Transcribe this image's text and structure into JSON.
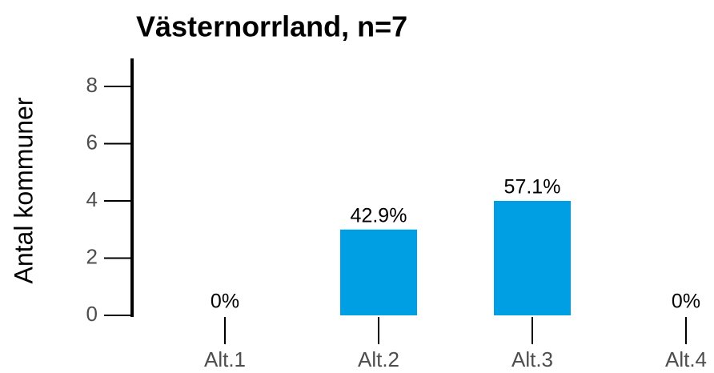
{
  "chart_data": {
    "type": "bar",
    "title": "Västernorrland, n=7",
    "y_label": "Antal kommuner",
    "categories": [
      "Alt.1",
      "Alt.2",
      "Alt.3",
      "Alt.4"
    ],
    "values": [
      0,
      3,
      4,
      0
    ],
    "value_labels": [
      "0%",
      "42.9%",
      "57.1%",
      "0%"
    ],
    "color": "#009fe3",
    "ylim": [
      0,
      8.9
    ],
    "yticks": [
      0,
      2,
      4,
      6,
      8
    ],
    "grid": false
  }
}
